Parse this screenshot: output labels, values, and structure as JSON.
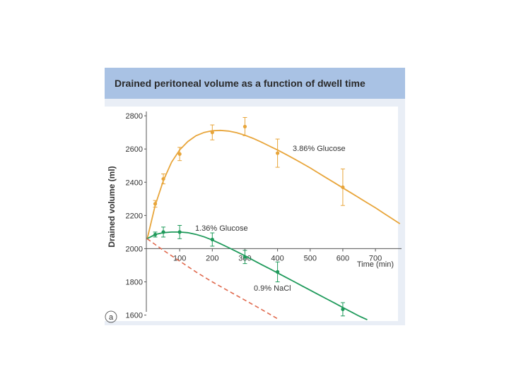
{
  "chart_data": {
    "type": "line",
    "title": "Drained peritoneal volume as a function of dwell time",
    "xlabel": "Time (min)",
    "ylabel": "Drained volume (ml)",
    "panel_label": "a",
    "xlim": [
      0,
      780
    ],
    "ylim": [
      1560,
      2860
    ],
    "x_ticks": [
      100,
      200,
      300,
      400,
      500,
      600,
      700
    ],
    "y_ticks": [
      1600,
      1800,
      2000,
      2200,
      2400,
      2600,
      2800
    ],
    "grid": false,
    "series": [
      {
        "name": "3.86% Glucose",
        "color": "#e8a53a",
        "dash": false,
        "curve_x": [
          0,
          25,
          50,
          75,
          100,
          125,
          150,
          175,
          200,
          225,
          250,
          275,
          300,
          325,
          350,
          375,
          400,
          425,
          450,
          475,
          500,
          525,
          550,
          575,
          600,
          625,
          650,
          675,
          700,
          725,
          750,
          775
        ],
        "curve_y": [
          2055,
          2260,
          2410,
          2520,
          2595,
          2645,
          2680,
          2700,
          2710,
          2712,
          2708,
          2698,
          2683,
          2664,
          2642,
          2618,
          2594,
          2568,
          2542,
          2514,
          2486,
          2456,
          2426,
          2396,
          2366,
          2336,
          2306,
          2276,
          2246,
          2214,
          2182,
          2150
        ],
        "points": [
          {
            "x": 25,
            "y": 2270,
            "err": 20
          },
          {
            "x": 50,
            "y": 2420,
            "err": 30
          },
          {
            "x": 100,
            "y": 2570,
            "err": 40
          },
          {
            "x": 200,
            "y": 2700,
            "err": 45
          },
          {
            "x": 300,
            "y": 2735,
            "err": 55
          },
          {
            "x": 400,
            "y": 2575,
            "err": 85
          },
          {
            "x": 600,
            "y": 2370,
            "err": 110
          }
        ]
      },
      {
        "name": "1.36% Glucose",
        "color": "#1f9a5b",
        "dash": false,
        "curve_x": [
          0,
          25,
          50,
          75,
          100,
          125,
          150,
          175,
          200,
          225,
          250,
          275,
          300,
          325,
          350,
          375,
          400,
          425,
          450,
          475,
          500,
          525,
          550,
          575,
          600,
          625,
          650,
          675
        ],
        "curve_y": [
          2060,
          2085,
          2096,
          2100,
          2100,
          2096,
          2086,
          2071,
          2052,
          2030,
          2006,
          1982,
          1957,
          1931,
          1905,
          1880,
          1854,
          1828,
          1802,
          1776,
          1750,
          1724,
          1698,
          1672,
          1646,
          1620,
          1594,
          1572
        ],
        "points": [
          {
            "x": 25,
            "y": 2085,
            "err": 15
          },
          {
            "x": 50,
            "y": 2100,
            "err": 30
          },
          {
            "x": 100,
            "y": 2100,
            "err": 40
          },
          {
            "x": 200,
            "y": 2055,
            "err": 40
          },
          {
            "x": 300,
            "y": 1950,
            "err": 40
          },
          {
            "x": 400,
            "y": 1860,
            "err": 60
          },
          {
            "x": 600,
            "y": 1635,
            "err": 40
          }
        ]
      },
      {
        "name": "0.9% NaCl",
        "color": "#e06a4e",
        "dash": true,
        "curve_x": [
          0,
          50,
          100,
          150,
          200,
          250,
          300,
          350,
          400
        ],
        "curve_y": [
          2060,
          1990,
          1925,
          1860,
          1800,
          1745,
          1690,
          1635,
          1578
        ],
        "points": []
      }
    ]
  }
}
